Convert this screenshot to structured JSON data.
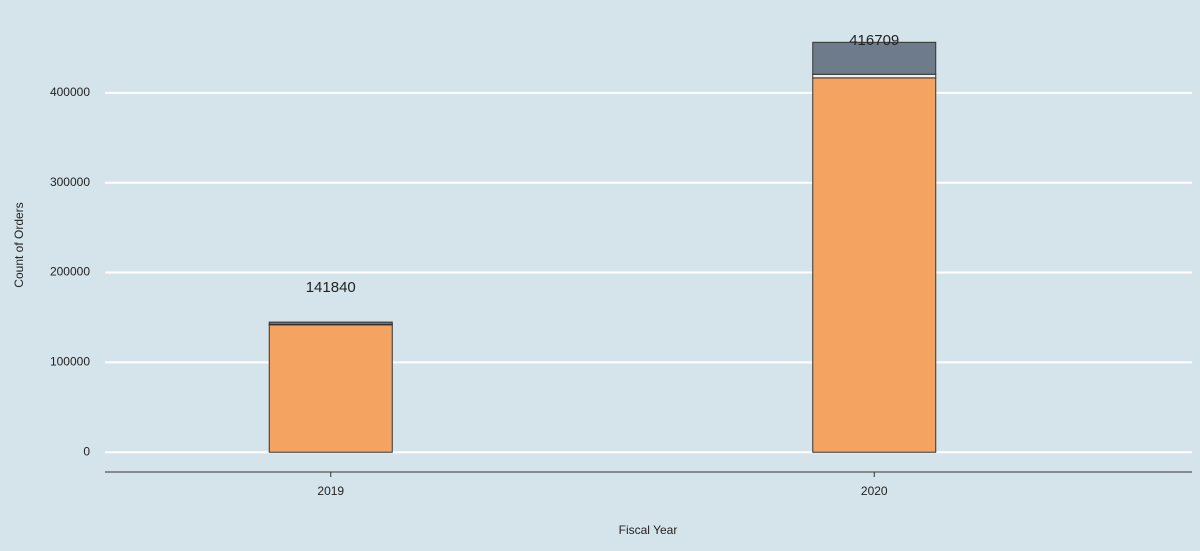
{
  "chart_data": {
    "type": "stacked_bar",
    "x_label": "Fiscal Year",
    "y_label": "Count of Orders",
    "categories": [
      "2019",
      "2020"
    ],
    "series": [
      {
        "color": "#f4a460",
        "values": [
          141840,
          416709
        ]
      },
      {
        "color": "#eeeeee",
        "values": [
          500,
          4000
        ]
      },
      {
        "color": "#6e7b8b",
        "values": [
          2500,
          35600
        ]
      }
    ],
    "ylim": [
      -22000,
      470000
    ],
    "yticks": [
      0,
      100000,
      200000,
      300000,
      400000
    ],
    "grid": true,
    "background": "#d5e4eb"
  }
}
